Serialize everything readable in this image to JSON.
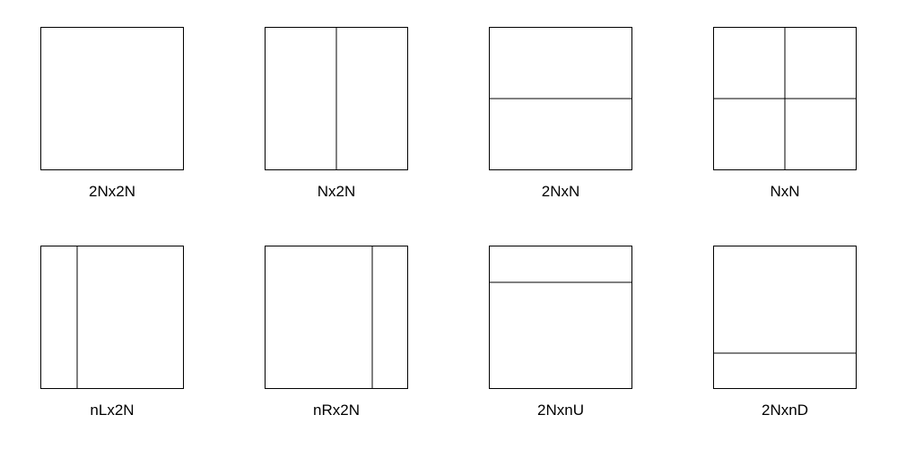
{
  "global": {
    "box_size": 160,
    "border_color": "#000000",
    "border_width": 1,
    "line_width": 1,
    "background_color": "#ffffff",
    "label_fontsize": 17,
    "label_color": "#000000",
    "font_family": "Arial, Helvetica, sans-serif"
  },
  "partitions": [
    {
      "id": "2Nx2N",
      "label": "2Nx2N",
      "splits": []
    },
    {
      "id": "Nx2N",
      "label": "Nx2N",
      "splits": [
        {
          "orientation": "vertical",
          "fraction": 0.5
        }
      ]
    },
    {
      "id": "2NxN",
      "label": "2NxN",
      "splits": [
        {
          "orientation": "horizontal",
          "fraction": 0.5
        }
      ]
    },
    {
      "id": "NxN",
      "label": "NxN",
      "splits": [
        {
          "orientation": "vertical",
          "fraction": 0.5
        },
        {
          "orientation": "horizontal",
          "fraction": 0.5
        }
      ]
    },
    {
      "id": "nLx2N",
      "label": "nLx2N",
      "splits": [
        {
          "orientation": "vertical",
          "fraction": 0.25
        }
      ]
    },
    {
      "id": "nRx2N",
      "label": "nRx2N",
      "splits": [
        {
          "orientation": "vertical",
          "fraction": 0.75
        }
      ]
    },
    {
      "id": "2NxnU",
      "label": "2NxnU",
      "splits": [
        {
          "orientation": "horizontal",
          "fraction": 0.25
        }
      ]
    },
    {
      "id": "2NxnD",
      "label": "2NxnD",
      "splits": [
        {
          "orientation": "horizontal",
          "fraction": 0.75
        }
      ]
    }
  ]
}
